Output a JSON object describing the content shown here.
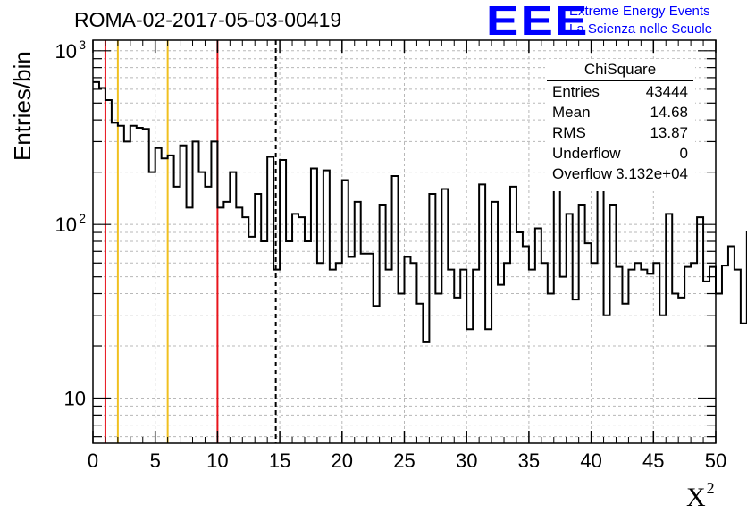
{
  "header": {
    "title": "ROMA-02-2017-05-03-00419",
    "logo_text": "EEE",
    "logo_line1": "Extreme Energy Events",
    "logo_line2": "La Scienza nelle Scuole"
  },
  "stats_box": {
    "title": "ChiSquare",
    "rows": [
      {
        "label": "Entries",
        "value": "43444"
      },
      {
        "label": "Mean",
        "value": "14.68"
      },
      {
        "label": "RMS",
        "value": "13.87"
      },
      {
        "label": "Underflow",
        "value": "0"
      },
      {
        "label": "Overflow",
        "value": "3.132e+04"
      }
    ]
  },
  "colors": {
    "histogram": "#000000",
    "red_line": "#e8141c",
    "yellow_line": "#f0c020",
    "grid": "#b8b8b8",
    "logo": "#0000ff"
  },
  "chart_data": {
    "type": "histogram",
    "title": "ROMA-02-2017-05-03-00419",
    "xlabel": "X²",
    "ylabel": "Entries/bin",
    "xlim": [
      0,
      50
    ],
    "ylim": [
      5.5,
      1150
    ],
    "ylog": true,
    "grid": true,
    "bin_width": 0.5,
    "x_ticks": [
      0,
      5,
      10,
      15,
      20,
      25,
      30,
      35,
      40,
      45,
      50
    ],
    "x_tick_labels": [
      "0",
      "5",
      "10",
      "15",
      "20",
      "25",
      "30",
      "35",
      "40",
      "45",
      "50"
    ],
    "y_ticks": [
      10,
      100,
      1000
    ],
    "y_tick_labels": [
      "10",
      "10²",
      "10³"
    ],
    "values": [
      660,
      610,
      520,
      385,
      370,
      300,
      370,
      360,
      355,
      200,
      275,
      240,
      250,
      165,
      285,
      125,
      300,
      200,
      165,
      300,
      125,
      135,
      200,
      125,
      110,
      85,
      150,
      80,
      245,
      55,
      235,
      80,
      115,
      110,
      80,
      210,
      60,
      205,
      55,
      60,
      180,
      65,
      135,
      68,
      68,
      34,
      130,
      55,
      190,
      40,
      65,
      60,
      35,
      21,
      150,
      40,
      160,
      55,
      38,
      55,
      25,
      55,
      170,
      25,
      135,
      45,
      60,
      165,
      90,
      75,
      55,
      95,
      60,
      40,
      185,
      50,
      115,
      37,
      130,
      78,
      60,
      165,
      30,
      130,
      57,
      35,
      55,
      60,
      55,
      52,
      60,
      30,
      115,
      40,
      38,
      57,
      60,
      110,
      47,
      57,
      40,
      58,
      75,
      55,
      27,
      90,
      40,
      39,
      42,
      30,
      53,
      37,
      58,
      49,
      41,
      32,
      42,
      26,
      95,
      30,
      85,
      33,
      28,
      55,
      23,
      25,
      32,
      105,
      70,
      35,
      25,
      32,
      115,
      45,
      62,
      100,
      90,
      32,
      47,
      32,
      55,
      27,
      62,
      52,
      32,
      95,
      42,
      30,
      40,
      37,
      40,
      43,
      55,
      55,
      40,
      32,
      25,
      53,
      28,
      32,
      50,
      32,
      100,
      23,
      29,
      36,
      42,
      100,
      75,
      60,
      60,
      27,
      37,
      35,
      30,
      45,
      40,
      25,
      39,
      35,
      20,
      30,
      27,
      29,
      22,
      30,
      23,
      25,
      21,
      100,
      80,
      80,
      38,
      28,
      105,
      80,
      40,
      32,
      45,
      27,
      46,
      27,
      38,
      47,
      28,
      37,
      55,
      30,
      38,
      80,
      52,
      40,
      32,
      38,
      25,
      20
    ],
    "vlines": [
      {
        "x": 1,
        "color": "red",
        "style": "solid"
      },
      {
        "x": 2,
        "color": "yellow",
        "style": "solid"
      },
      {
        "x": 6,
        "color": "yellow",
        "style": "solid"
      },
      {
        "x": 10,
        "color": "red",
        "style": "solid"
      },
      {
        "x": 14.68,
        "color": "black",
        "style": "dashed"
      }
    ]
  }
}
